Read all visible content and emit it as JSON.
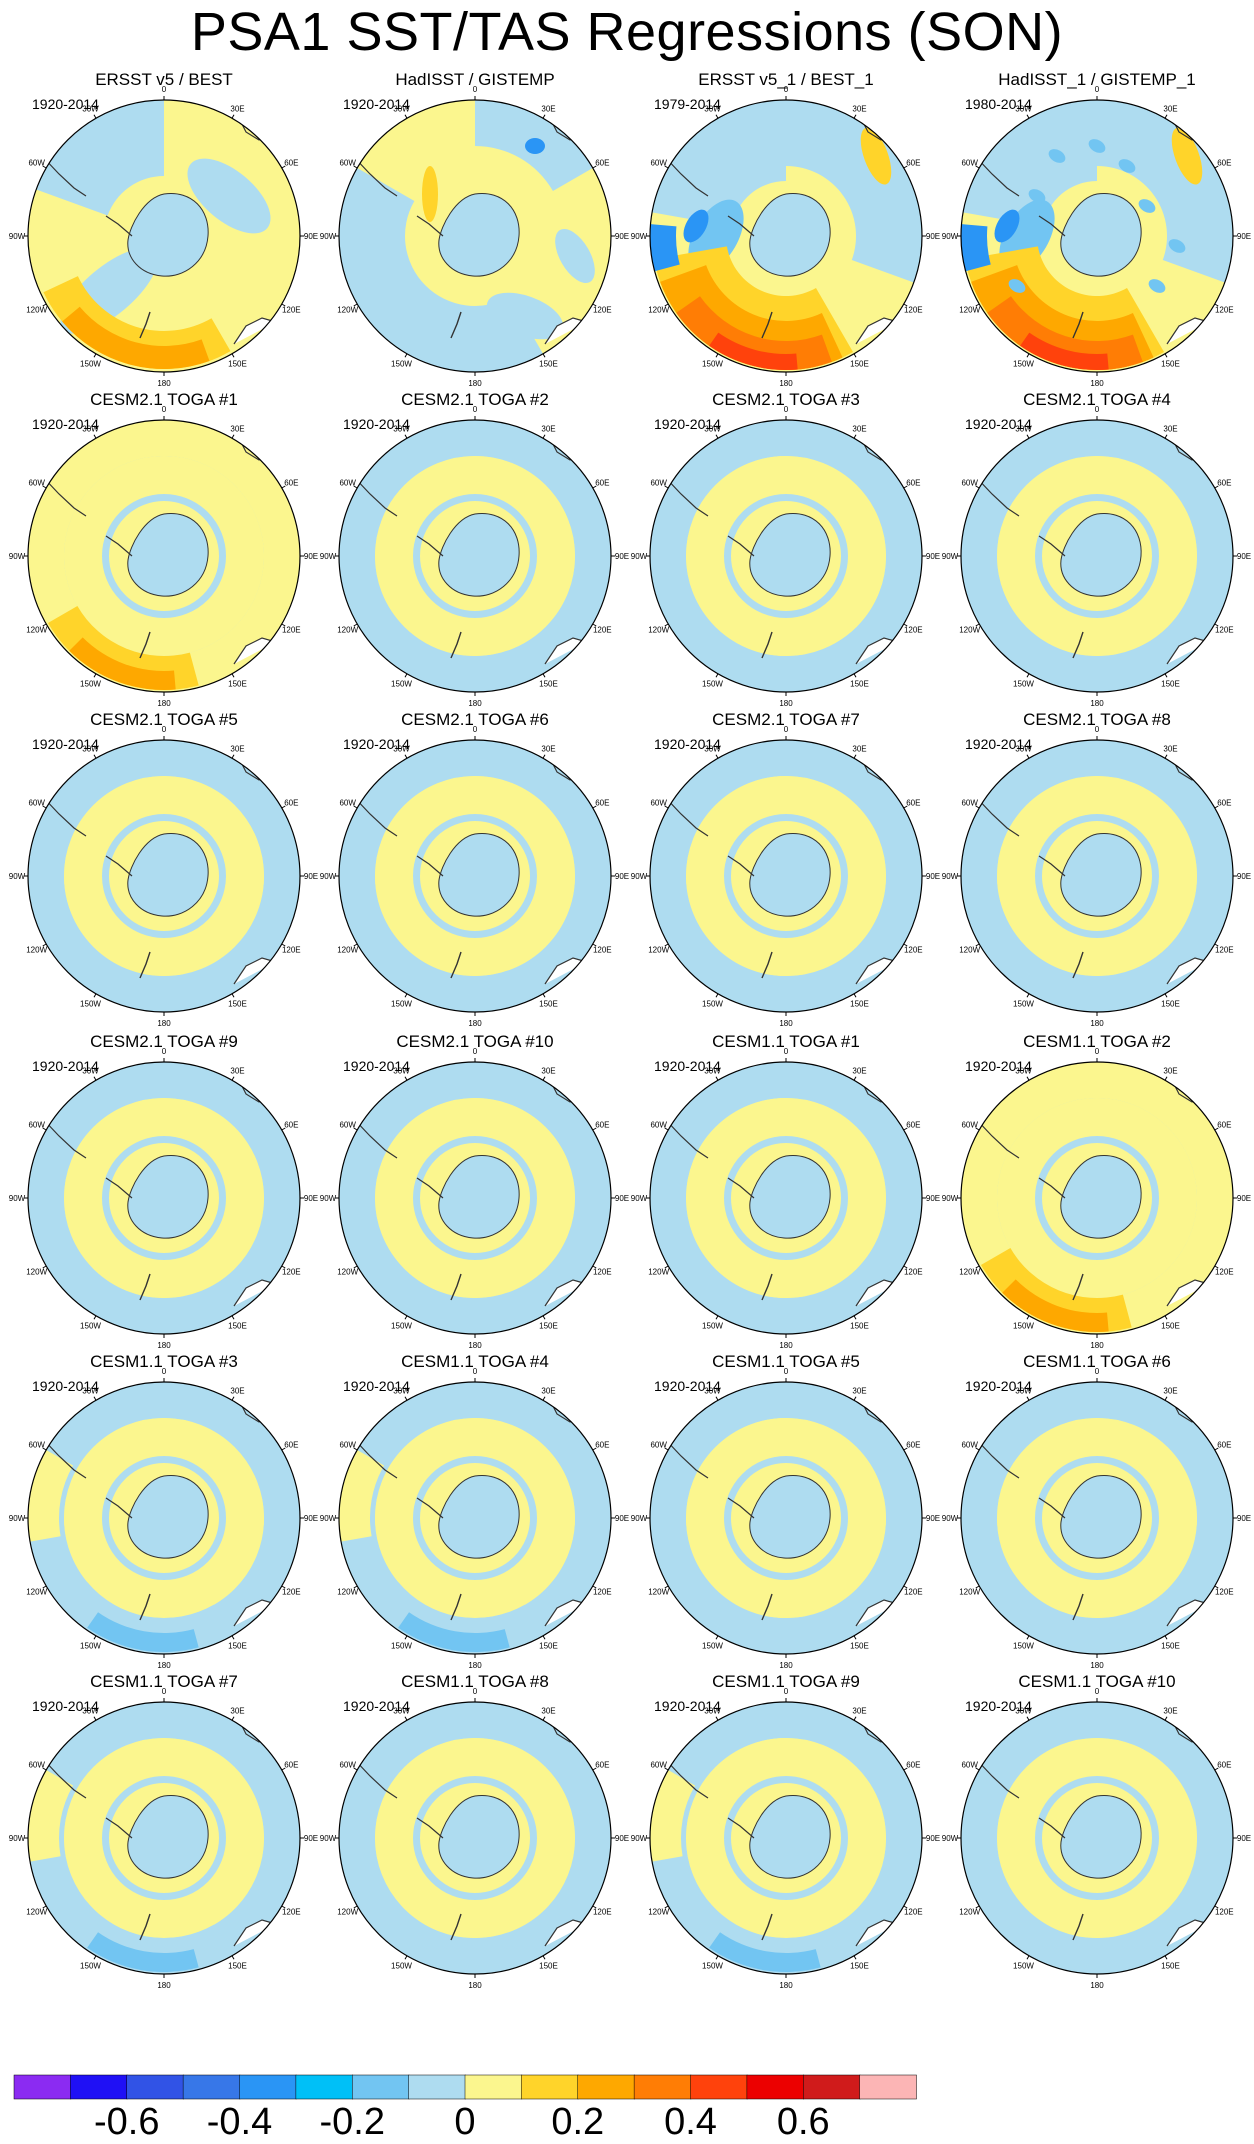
{
  "title": "PSA1 SST/TAS Regressions (SON)",
  "longitude_labels": [
    "0",
    "30E",
    "60E",
    "90E",
    "120E",
    "150E",
    "180",
    "150W",
    "120W",
    "90W",
    "60W",
    "30W"
  ],
  "panels": [
    {
      "title": "ERSST v5 / BEST",
      "period": "1920-2014",
      "pattern": "obs"
    },
    {
      "title": "HadISST / GISTEMP",
      "period": "1920-2014",
      "pattern": "obs_weak"
    },
    {
      "title": "ERSST v5_1 / BEST_1",
      "period": "1979-2014",
      "pattern": "obs_strong"
    },
    {
      "title": "HadISST_1 / GISTEMP_1",
      "period": "1980-2014",
      "pattern": "obs_strong_noisy"
    },
    {
      "title": "CESM2.1 TOGA #1",
      "period": "1920-2014",
      "pattern": "warm_pacific"
    },
    {
      "title": "CESM2.1 TOGA #2",
      "period": "1920-2014",
      "pattern": "ring"
    },
    {
      "title": "CESM2.1 TOGA #3",
      "period": "1920-2014",
      "pattern": "ring"
    },
    {
      "title": "CESM2.1 TOGA #4",
      "period": "1920-2014",
      "pattern": "ring"
    },
    {
      "title": "CESM2.1 TOGA #5",
      "period": "1920-2014",
      "pattern": "ring"
    },
    {
      "title": "CESM2.1 TOGA #6",
      "period": "1920-2014",
      "pattern": "ring"
    },
    {
      "title": "CESM2.1 TOGA #7",
      "period": "1920-2014",
      "pattern": "ring"
    },
    {
      "title": "CESM2.1 TOGA #8",
      "period": "1920-2014",
      "pattern": "ring"
    },
    {
      "title": "CESM2.1 TOGA #9",
      "period": "1920-2014",
      "pattern": "ring"
    },
    {
      "title": "CESM2.1 TOGA #10",
      "period": "1920-2014",
      "pattern": "ring"
    },
    {
      "title": "CESM1.1 TOGA #1",
      "period": "1920-2014",
      "pattern": "ring"
    },
    {
      "title": "CESM1.1 TOGA #2",
      "period": "1920-2014",
      "pattern": "warm_pacific"
    },
    {
      "title": "CESM1.1 TOGA #3",
      "period": "1920-2014",
      "pattern": "cool_pacific"
    },
    {
      "title": "CESM1.1 TOGA #4",
      "period": "1920-2014",
      "pattern": "cool_pacific"
    },
    {
      "title": "CESM1.1 TOGA #5",
      "period": "1920-2014",
      "pattern": "ring"
    },
    {
      "title": "CESM1.1 TOGA #6",
      "period": "1920-2014",
      "pattern": "ring"
    },
    {
      "title": "CESM1.1 TOGA #7",
      "period": "1920-2014",
      "pattern": "cool_pacific"
    },
    {
      "title": "CESM1.1 TOGA #8",
      "period": "1920-2014",
      "pattern": "ring"
    },
    {
      "title": "CESM1.1 TOGA #9",
      "period": "1920-2014",
      "pattern": "cool_pacific"
    },
    {
      "title": "CESM1.1 TOGA #10",
      "period": "1920-2014",
      "pattern": "ring"
    }
  ],
  "colorbar": {
    "colors": [
      "#8b2bf2",
      "#1f10f5",
      "#3153e6",
      "#3777e8",
      "#2a95f5",
      "#00c0f7",
      "#72c5f2",
      "#aedcf0",
      "#fbf68e",
      "#ffd42a",
      "#fea800",
      "#ff7d05",
      "#ff420c",
      "#ec0000",
      "#d01b1b",
      "#fcb5b5"
    ],
    "tick_values": [
      "-0.6",
      "-0.4",
      "-0.2",
      "0",
      "0.2",
      "0.4",
      "0.6"
    ]
  },
  "palette": {
    "blue": "#aedcf0",
    "blue2": "#72c5f2",
    "blue3": "#2a95f5",
    "yellow": "#fbf68e",
    "yellow2": "#ffd42a",
    "orange": "#fea800",
    "orange2": "#ff7d05",
    "red": "#ff420c"
  }
}
